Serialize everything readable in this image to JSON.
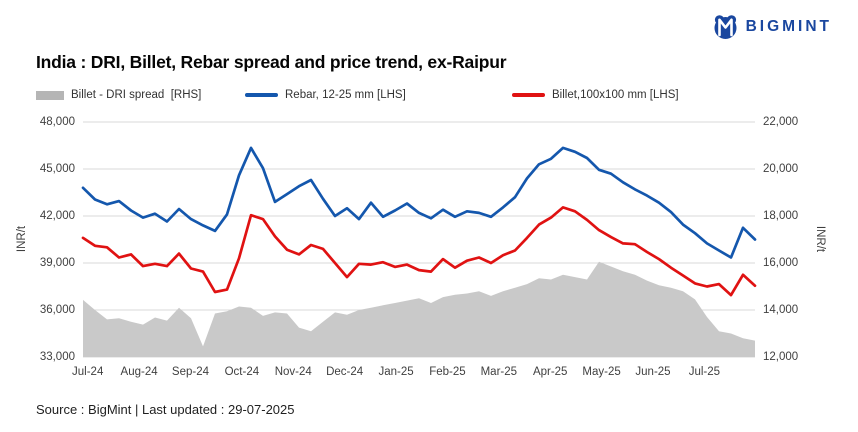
{
  "brand": "BIGMINT",
  "legend": [
    {
      "label": "Billet - DRI spread  [RHS]",
      "color": "#b5b5b5",
      "type": "area"
    },
    {
      "label": "Rebar, 12-25 mm [LHS]",
      "color": "#1457ad",
      "type": "line"
    },
    {
      "label": "Billet,100x100 mm [LHS]",
      "color": "#e01212",
      "type": "line"
    }
  ],
  "footer": {
    "source": "Source : BigMint | Last updated : 29-07-2025"
  },
  "chart_data": {
    "type": "line",
    "title": "India : DRI, Billet, Rebar spread and price trend, ex-Raipur",
    "x_labels": [
      "Jul-24",
      "Aug-24",
      "Sep-24",
      "Oct-24",
      "Nov-24",
      "Dec-24",
      "Jan-25",
      "Feb-25",
      "Mar-25",
      "Apr-25",
      "May-25",
      "Jun-25",
      "Jul-25"
    ],
    "x_frequency": "weekly",
    "grid": true,
    "legend_position": "top",
    "lhs": {
      "label": "INR/t",
      "range": [
        33000,
        48000
      ],
      "ticks": [
        "48,000",
        "45,000",
        "42,000",
        "39,000",
        "36,000",
        "33,000"
      ]
    },
    "rhs": {
      "label": "INR/t",
      "range": [
        12000,
        22000
      ],
      "ticks": [
        "22,000",
        "20,000",
        "18,000",
        "16,000",
        "14,000",
        "12,000"
      ]
    },
    "series": [
      {
        "name": "Billet - DRI spread",
        "axis": "RHS",
        "style": "area",
        "color": "#c9c9c9",
        "values": [
          14430,
          14000,
          13600,
          13650,
          13500,
          13380,
          13680,
          13550,
          14100,
          13650,
          12450,
          13850,
          13950,
          14150,
          14100,
          13750,
          13900,
          13850,
          13250,
          13100,
          13500,
          13900,
          13800,
          14000,
          14100,
          14200,
          14300,
          14400,
          14500,
          14300,
          14550,
          14650,
          14700,
          14800,
          14600,
          14800,
          14950,
          15100,
          15350,
          15300,
          15500,
          15400,
          15300,
          16050,
          15850,
          15650,
          15500,
          15250,
          15050,
          14950,
          14800,
          14450,
          13700,
          13100,
          13000,
          12800,
          12700
        ]
      },
      {
        "name": "Rebar, 12-25 mm",
        "axis": "LHS",
        "style": "line",
        "color": "#1457ad",
        "values": [
          43800,
          43050,
          42750,
          42950,
          42350,
          41900,
          42150,
          41650,
          42450,
          41800,
          41400,
          41050,
          42100,
          44600,
          46350,
          45050,
          42900,
          43400,
          43900,
          44300,
          43100,
          42000,
          42500,
          41800,
          42850,
          41950,
          42350,
          42800,
          42200,
          41850,
          42400,
          41950,
          42300,
          42200,
          41950,
          42550,
          43200,
          44400,
          45300,
          45650,
          46350,
          46100,
          45700,
          44950,
          44700,
          44150,
          43700,
          43300,
          42850,
          42250,
          41450,
          40900,
          40250,
          39800,
          39350,
          41250,
          40500
        ]
      },
      {
        "name": "Billet,100x100 mm",
        "axis": "LHS",
        "style": "line",
        "color": "#e01212",
        "values": [
          40600,
          40100,
          40000,
          39350,
          39550,
          38800,
          38950,
          38800,
          39600,
          38650,
          38450,
          37150,
          37300,
          39300,
          42050,
          41800,
          40700,
          39850,
          39550,
          40150,
          39900,
          39000,
          38100,
          38950,
          38900,
          39050,
          38750,
          38900,
          38550,
          38450,
          39250,
          38700,
          39150,
          39350,
          39000,
          39500,
          39800,
          40600,
          41450,
          41900,
          42550,
          42300,
          41750,
          41100,
          40650,
          40250,
          40200,
          39700,
          39250,
          38700,
          38200,
          37700,
          37500,
          37650,
          36950,
          38250,
          37550
        ]
      }
    ]
  }
}
